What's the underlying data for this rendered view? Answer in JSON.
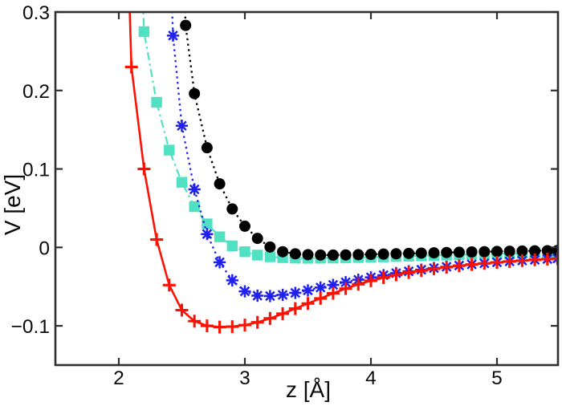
{
  "figure": {
    "background_color": "#ffffff",
    "frame_color": "#2f2f2f",
    "text_color": "#0b0b0b"
  },
  "chart_data": {
    "type": "line",
    "title": "",
    "xlabel": "z [Å]",
    "ylabel": "V [eV]",
    "xlim": [
      1.497,
      5.484
    ],
    "ylim": [
      -0.15,
      0.3
    ],
    "xticks": [
      2,
      3,
      4,
      5
    ],
    "xtick_labels": [
      "2",
      "3",
      "4",
      "5"
    ],
    "yticks": [
      0.3,
      0.2,
      0.1,
      0,
      -0.1
    ],
    "ytick_labels": [
      "0.3",
      "0.2",
      "0.1",
      "0",
      "−0.1"
    ],
    "grid": false,
    "legend": "none",
    "series": [
      {
        "name": "cyan-square-dashdot-curve",
        "color": "#50e1c3",
        "line_style": "dashdot",
        "marker": "square",
        "well_depth_eV": -0.014,
        "well_position_A": 3.5,
        "z": [
          2.13,
          2.2,
          2.3,
          2.4,
          2.5,
          2.6,
          2.7,
          2.8,
          2.9,
          3.0,
          3.1,
          3.2,
          3.3,
          3.4,
          3.5,
          3.6,
          3.7,
          3.8,
          3.9,
          4.0,
          4.1,
          4.2,
          4.3,
          4.4,
          4.5,
          4.6,
          4.7,
          4.8,
          4.9,
          5.0,
          5.1,
          5.2,
          5.3,
          5.4,
          5.48
        ],
        "V": [
          0.6,
          0.275,
          0.185,
          0.124,
          0.083,
          0.052,
          0.03,
          0.0135,
          0.002,
          -0.0055,
          -0.0098,
          -0.012,
          -0.0131,
          -0.0136,
          -0.0138,
          -0.0137,
          -0.0135,
          -0.0132,
          -0.0129,
          -0.0125,
          -0.0121,
          -0.0116,
          -0.0112,
          -0.0107,
          -0.0103,
          -0.0098,
          -0.0094,
          -0.009,
          -0.0086,
          -0.0082,
          -0.0079,
          -0.0075,
          -0.0072,
          -0.0069,
          -0.0067
        ]
      },
      {
        "name": "black-circle-dotted-curve",
        "color": "#000000",
        "line_style": "dotted",
        "marker": "circle",
        "well_depth_eV": -0.01,
        "well_position_A": 3.7,
        "z": [
          2.46,
          2.53,
          2.6,
          2.7,
          2.8,
          2.9,
          3.0,
          3.1,
          3.2,
          3.3,
          3.4,
          3.5,
          3.6,
          3.7,
          3.8,
          3.9,
          4.0,
          4.1,
          4.2,
          4.3,
          4.4,
          4.5,
          4.6,
          4.7,
          4.8,
          4.9,
          5.0,
          5.1,
          5.2,
          5.3,
          5.4,
          5.48
        ],
        "V": [
          0.6,
          0.283,
          0.196,
          0.127,
          0.081,
          0.049,
          0.027,
          0.0115,
          0.0005,
          -0.0055,
          -0.0082,
          -0.0093,
          -0.0097,
          -0.0098,
          -0.0096,
          -0.0093,
          -0.0089,
          -0.0085,
          -0.0081,
          -0.0077,
          -0.0073,
          -0.0069,
          -0.0065,
          -0.0062,
          -0.0058,
          -0.0055,
          -0.0052,
          -0.0049,
          -0.0047,
          -0.0044,
          -0.0042,
          -0.004
        ]
      },
      {
        "name": "blue-asterisk-dotted-curve",
        "color": "#2121ef",
        "line_style": "dotted",
        "marker": "asterisk",
        "well_depth_eV": -0.062,
        "well_position_A": 3.15,
        "z": [
          2.36,
          2.43,
          2.5,
          2.6,
          2.7,
          2.8,
          2.9,
          3.0,
          3.1,
          3.2,
          3.3,
          3.4,
          3.5,
          3.6,
          3.7,
          3.8,
          3.9,
          4.0,
          4.1,
          4.2,
          4.3,
          4.4,
          4.5,
          4.6,
          4.7,
          4.8,
          4.9,
          5.0,
          5.1,
          5.2,
          5.3,
          5.4,
          5.48
        ],
        "V": [
          0.6,
          0.27,
          0.155,
          0.074,
          0.017,
          -0.019,
          -0.042,
          -0.056,
          -0.0615,
          -0.062,
          -0.0605,
          -0.058,
          -0.0548,
          -0.0512,
          -0.0478,
          -0.0444,
          -0.0412,
          -0.0382,
          -0.0354,
          -0.0328,
          -0.0305,
          -0.0284,
          -0.0264,
          -0.0247,
          -0.0231,
          -0.0216,
          -0.0203,
          -0.019,
          -0.0179,
          -0.0168,
          -0.0158,
          -0.0149,
          -0.0142
        ]
      },
      {
        "name": "red-plus-solid-curve",
        "color": "#fb1205",
        "line_style": "solid",
        "marker": "plus",
        "well_depth_eV": -0.1015,
        "well_position_A": 2.8,
        "z": [
          2.03,
          2.1,
          2.2,
          2.3,
          2.4,
          2.5,
          2.6,
          2.7,
          2.8,
          2.9,
          3.0,
          3.1,
          3.2,
          3.3,
          3.4,
          3.5,
          3.6,
          3.7,
          3.8,
          3.9,
          4.0,
          4.1,
          4.2,
          4.3,
          4.4,
          4.5,
          4.6,
          4.7,
          4.8,
          4.9,
          5.0,
          5.1,
          5.2,
          5.3,
          5.4,
          5.48
        ],
        "V": [
          0.6,
          0.23,
          0.1,
          0.01,
          -0.048,
          -0.08,
          -0.094,
          -0.1,
          -0.1015,
          -0.101,
          -0.099,
          -0.0955,
          -0.0905,
          -0.0845,
          -0.078,
          -0.0715,
          -0.065,
          -0.0585,
          -0.0525,
          -0.047,
          -0.0425,
          -0.0385,
          -0.035,
          -0.032,
          -0.0295,
          -0.0272,
          -0.0252,
          -0.0234,
          -0.0218,
          -0.0204,
          -0.0191,
          -0.0179,
          -0.0168,
          -0.0158,
          -0.0149,
          -0.0143
        ]
      }
    ]
  }
}
